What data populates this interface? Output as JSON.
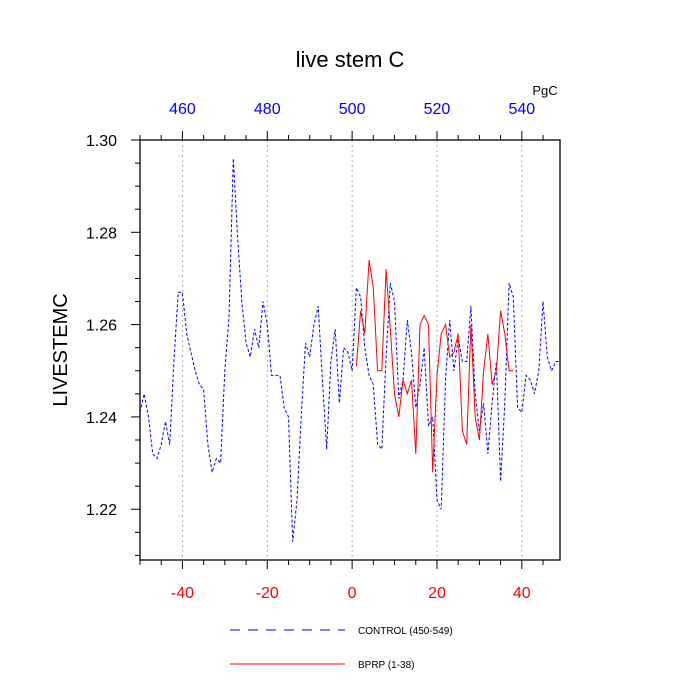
{
  "chart_data": {
    "type": "line",
    "title": "live stem C",
    "ylabel": "LIVESTEMC",
    "units": "PgC",
    "xlim": [
      -50,
      49
    ],
    "ylim": [
      1.209,
      1.3
    ],
    "x_ticks": [
      -40,
      -20,
      0,
      20,
      40
    ],
    "x_tick_labels": [
      "-40",
      "-20",
      "0",
      "20",
      "40"
    ],
    "top_ticks": [
      -40,
      -20,
      0,
      20,
      40
    ],
    "top_tick_labels": [
      "460",
      "480",
      "500",
      "520",
      "540"
    ],
    "y_ticks": [
      1.22,
      1.24,
      1.26,
      1.28,
      1.3
    ],
    "y_tick_labels": [
      "1.22",
      "1.24",
      "1.26",
      "1.28",
      "1.30"
    ],
    "grid": "vertical dotted",
    "series": [
      {
        "name": "CONTROL (450-549)",
        "color": "#0000ff",
        "style": "dashed",
        "x": [
          -50,
          -49,
          -48,
          -47,
          -46,
          -45,
          -44,
          -43,
          -42,
          -41,
          -40,
          -39,
          -38,
          -37,
          -36,
          -35,
          -34,
          -33,
          -32,
          -31,
          -30,
          -29,
          -28,
          -27,
          -26,
          -25,
          -24,
          -23,
          -22,
          -21,
          -20,
          -19,
          -18,
          -17,
          -16,
          -15,
          -14,
          -13,
          -12,
          -11,
          -10,
          -9,
          -8,
          -7,
          -6,
          -5,
          -4,
          -3,
          -2,
          -1,
          0,
          1,
          2,
          3,
          4,
          5,
          6,
          7,
          8,
          9,
          10,
          11,
          12,
          13,
          14,
          15,
          16,
          17,
          18,
          19,
          20,
          21,
          22,
          23,
          24,
          25,
          26,
          27,
          28,
          29,
          30,
          31,
          32,
          33,
          34,
          35,
          36,
          37,
          38,
          39,
          40,
          41,
          42,
          43,
          44,
          45,
          46,
          47,
          48,
          49
        ],
        "values": [
          1.241,
          1.245,
          1.24,
          1.232,
          1.231,
          1.234,
          1.239,
          1.234,
          1.252,
          1.267,
          1.267,
          1.258,
          1.254,
          1.25,
          1.247,
          1.246,
          1.234,
          1.228,
          1.231,
          1.23,
          1.25,
          1.262,
          1.296,
          1.279,
          1.265,
          1.256,
          1.253,
          1.259,
          1.255,
          1.265,
          1.26,
          1.249,
          1.249,
          1.249,
          1.242,
          1.24,
          1.213,
          1.222,
          1.24,
          1.256,
          1.253,
          1.26,
          1.264,
          1.248,
          1.233,
          1.252,
          1.259,
          1.243,
          1.255,
          1.254,
          1.25,
          1.268,
          1.266,
          1.255,
          1.249,
          1.247,
          1.234,
          1.233,
          1.253,
          1.269,
          1.265,
          1.244,
          1.248,
          1.261,
          1.254,
          1.242,
          1.247,
          1.255,
          1.238,
          1.24,
          1.222,
          1.22,
          1.248,
          1.261,
          1.25,
          1.257,
          1.252,
          1.252,
          1.264,
          1.245,
          1.237,
          1.243,
          1.232,
          1.243,
          1.252,
          1.226,
          1.243,
          1.269,
          1.266,
          1.242,
          1.241,
          1.249,
          1.248,
          1.245,
          1.25,
          1.265,
          1.253,
          1.25,
          1.252,
          1.252
        ]
      },
      {
        "name": "BPRP (1-38)",
        "color": "#ff0000",
        "style": "solid",
        "x": [
          1,
          2,
          3,
          4,
          5,
          6,
          7,
          8,
          9,
          10,
          11,
          12,
          13,
          14,
          15,
          16,
          17,
          18,
          19,
          20,
          21,
          22,
          23,
          24,
          25,
          26,
          27,
          28,
          29,
          30,
          31,
          32,
          33,
          34,
          35,
          36,
          37,
          38
        ],
        "values": [
          1.251,
          1.263,
          1.258,
          1.274,
          1.268,
          1.25,
          1.25,
          1.272,
          1.259,
          1.245,
          1.24,
          1.248,
          1.245,
          1.248,
          1.232,
          1.26,
          1.262,
          1.26,
          1.228,
          1.249,
          1.258,
          1.26,
          1.253,
          1.254,
          1.258,
          1.237,
          1.234,
          1.26,
          1.24,
          1.235,
          1.25,
          1.258,
          1.247,
          1.25,
          1.263,
          1.258,
          1.25,
          1.25
        ]
      }
    ]
  }
}
